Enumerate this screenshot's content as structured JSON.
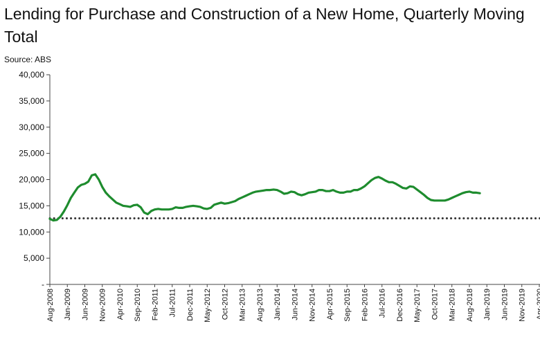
{
  "chart_data": {
    "type": "line",
    "title": "Lending for Purchase and Construction of a New Home, Quarterly Moving Total",
    "subtitle": "Source: ABS",
    "xlabel": "",
    "ylabel": "",
    "ylim": [
      0,
      40000
    ],
    "y_ticks": [
      "-",
      "5,000",
      "10,000",
      "15,000",
      "20,000",
      "25,000",
      "30,000",
      "35,000",
      "40,000"
    ],
    "y_tick_values": [
      0,
      5000,
      10000,
      15000,
      20000,
      25000,
      30000,
      35000,
      40000
    ],
    "x_ticks": [
      "Aug-2008",
      "Jan-2009",
      "Jun-2009",
      "Nov-2009",
      "Apr-2010",
      "Sep-2010",
      "Feb-2011",
      "Jul-2011",
      "Dec-2011",
      "May-2012",
      "Oct-2012",
      "Mar-2013",
      "Aug-2013",
      "Jan-2014",
      "Jun-2014",
      "Nov-2014",
      "Apr-2015",
      "Sep-2015",
      "Feb-2016",
      "Jul-2016",
      "Dec-2016",
      "May-2017",
      "Oct-2017",
      "Mar-2018",
      "Aug-2018",
      "Jan-2019",
      "Jun-2019",
      "Nov-2019",
      "Apr-2020"
    ],
    "x_start": "Aug-2008",
    "reference_line": {
      "value": 12600,
      "style": "dotted",
      "color": "#333333"
    },
    "grid": false,
    "colors": {
      "series": "#1e8c2e",
      "axis": "#444444"
    },
    "series": [
      {
        "values": [
          12500,
          12200,
          12300,
          12900,
          13900,
          15100,
          16500,
          17500,
          18500,
          19000,
          19200,
          19600,
          20800,
          21000,
          20000,
          18600,
          17500,
          16800,
          16200,
          15600,
          15300,
          15000,
          14900,
          14800,
          15100,
          15200,
          14700,
          13700,
          13400,
          14000,
          14300,
          14400,
          14300,
          14300,
          14300,
          14400,
          14700,
          14600,
          14600,
          14800,
          14900,
          15000,
          14900,
          14800,
          14500,
          14400,
          14600,
          15200,
          15400,
          15600,
          15400,
          15500,
          15700,
          15900,
          16300,
          16600,
          16900,
          17200,
          17500,
          17700,
          17800,
          17900,
          18000,
          18000,
          18100,
          18000,
          17700,
          17300,
          17400,
          17700,
          17600,
          17200,
          17000,
          17200,
          17500,
          17600,
          17700,
          18000,
          18000,
          17800,
          17800,
          18000,
          17700,
          17500,
          17500,
          17700,
          17700,
          18000,
          18000,
          18300,
          18700,
          19300,
          19900,
          20300,
          20500,
          20200,
          19800,
          19500,
          19500,
          19200,
          18800,
          18400,
          18300,
          18700,
          18600,
          18100,
          17600,
          17100,
          16500,
          16100,
          16000,
          16000,
          16000,
          16000,
          16200,
          16500,
          16800,
          17100,
          17400,
          17600,
          17700,
          17500,
          17500,
          17400
        ]
      }
    ]
  }
}
